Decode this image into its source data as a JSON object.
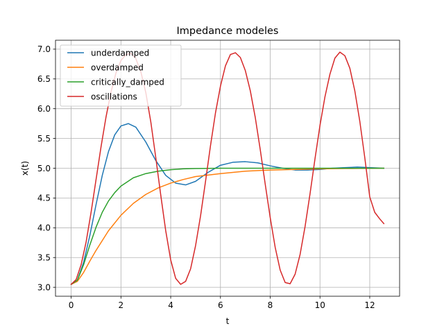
{
  "chart_data": {
    "type": "line",
    "title": "Impedance modeles",
    "xlabel": "t",
    "ylabel": "x(t)",
    "xlim": [
      -0.63,
      13.2
    ],
    "ylim": [
      2.85,
      7.15
    ],
    "xticks": [
      0,
      2,
      4,
      6,
      8,
      10,
      12
    ],
    "yticks": [
      3.0,
      3.5,
      4.0,
      4.5,
      5.0,
      5.5,
      6.0,
      6.5,
      7.0
    ],
    "xtick_labels": [
      "0",
      "2",
      "4",
      "6",
      "8",
      "10",
      "12"
    ],
    "ytick_labels": [
      "3.0",
      "3.5",
      "4.0",
      "4.5",
      "5.0",
      "5.5",
      "6.0",
      "6.5",
      "7.0"
    ],
    "grid": true,
    "legend": "upper-left",
    "series": [
      {
        "name": "underdamped",
        "color": "#1f77b4",
        "x": [
          0,
          0.25,
          0.5,
          0.75,
          1.0,
          1.25,
          1.5,
          1.75,
          2.0,
          2.3,
          2.6,
          3.0,
          3.4,
          3.8,
          4.2,
          4.6,
          5.0,
          5.5,
          6.0,
          6.5,
          7.0,
          7.5,
          8.0,
          8.5,
          9.0,
          9.5,
          10.0,
          10.5,
          11.0,
          11.5,
          12.0,
          12.566
        ],
        "y": [
          3.05,
          3.12,
          3.42,
          3.87,
          4.39,
          4.88,
          5.28,
          5.56,
          5.71,
          5.75,
          5.69,
          5.44,
          5.13,
          4.88,
          4.75,
          4.72,
          4.78,
          4.93,
          5.05,
          5.1,
          5.11,
          5.09,
          5.04,
          5.0,
          4.97,
          4.97,
          4.98,
          5.0,
          5.01,
          5.02,
          5.01,
          5.0
        ]
      },
      {
        "name": "overdamped",
        "color": "#ff7f0e",
        "x": [
          0,
          0.25,
          0.5,
          0.75,
          1.0,
          1.5,
          2.0,
          2.5,
          3.0,
          3.5,
          4.0,
          4.5,
          5.0,
          6.0,
          7.0,
          8.0,
          9.0,
          10.0,
          11.0,
          12.0,
          12.566
        ],
        "y": [
          3.05,
          3.1,
          3.25,
          3.44,
          3.62,
          3.95,
          4.21,
          4.41,
          4.56,
          4.67,
          4.75,
          4.81,
          4.86,
          4.91,
          4.95,
          4.97,
          4.98,
          4.99,
          4.995,
          4.998,
          5.0
        ]
      },
      {
        "name": "critically_damped",
        "color": "#2ca02c",
        "x": [
          0,
          0.25,
          0.5,
          0.75,
          1.0,
          1.25,
          1.5,
          1.75,
          2.0,
          2.5,
          3.0,
          3.5,
          4.0,
          4.5,
          5.0,
          6.0,
          7.0,
          8.0,
          10.0,
          12.0,
          12.566
        ],
        "y": [
          3.05,
          3.12,
          3.38,
          3.71,
          4.01,
          4.26,
          4.45,
          4.59,
          4.7,
          4.84,
          4.91,
          4.95,
          4.975,
          4.99,
          4.995,
          5.0,
          5.0,
          5.0,
          5.0,
          5.0,
          5.0
        ]
      },
      {
        "name": "oscillations",
        "color": "#d62728",
        "x": [
          0,
          0.2,
          0.4,
          0.6,
          0.8,
          1.0,
          1.2,
          1.4,
          1.6,
          1.8,
          2.0,
          2.2,
          2.4,
          2.6,
          2.8,
          3.0,
          3.2,
          3.4,
          3.6,
          3.8,
          4.0,
          4.2,
          4.4,
          4.6,
          4.8,
          5.0,
          5.2,
          5.4,
          5.6,
          5.8,
          6.0,
          6.2,
          6.4,
          6.6,
          6.8,
          7.0,
          7.2,
          7.4,
          7.6,
          7.8,
          8.0,
          8.2,
          8.4,
          8.6,
          8.8,
          9.0,
          9.2,
          9.4,
          9.6,
          9.8,
          10.0,
          10.2,
          10.4,
          10.6,
          10.8,
          11.0,
          11.2,
          11.4,
          11.6,
          11.8,
          12.0,
          12.2,
          12.4,
          12.566
        ],
        "y": [
          3.05,
          3.13,
          3.38,
          3.76,
          4.26,
          4.81,
          5.36,
          5.86,
          6.28,
          6.6,
          6.81,
          6.91,
          6.93,
          6.84,
          6.62,
          6.27,
          5.78,
          5.18,
          4.55,
          3.95,
          3.46,
          3.15,
          3.05,
          3.1,
          3.31,
          3.7,
          4.2,
          4.78,
          5.38,
          5.93,
          6.38,
          6.72,
          6.91,
          6.94,
          6.86,
          6.64,
          6.3,
          5.85,
          5.31,
          4.73,
          4.17,
          3.67,
          3.29,
          3.08,
          3.06,
          3.22,
          3.55,
          4.02,
          4.57,
          5.16,
          5.72,
          6.2,
          6.58,
          6.85,
          6.95,
          6.89,
          6.68,
          6.3,
          5.79,
          5.18,
          4.52,
          4.26,
          4.15,
          4.07
        ]
      }
    ]
  }
}
